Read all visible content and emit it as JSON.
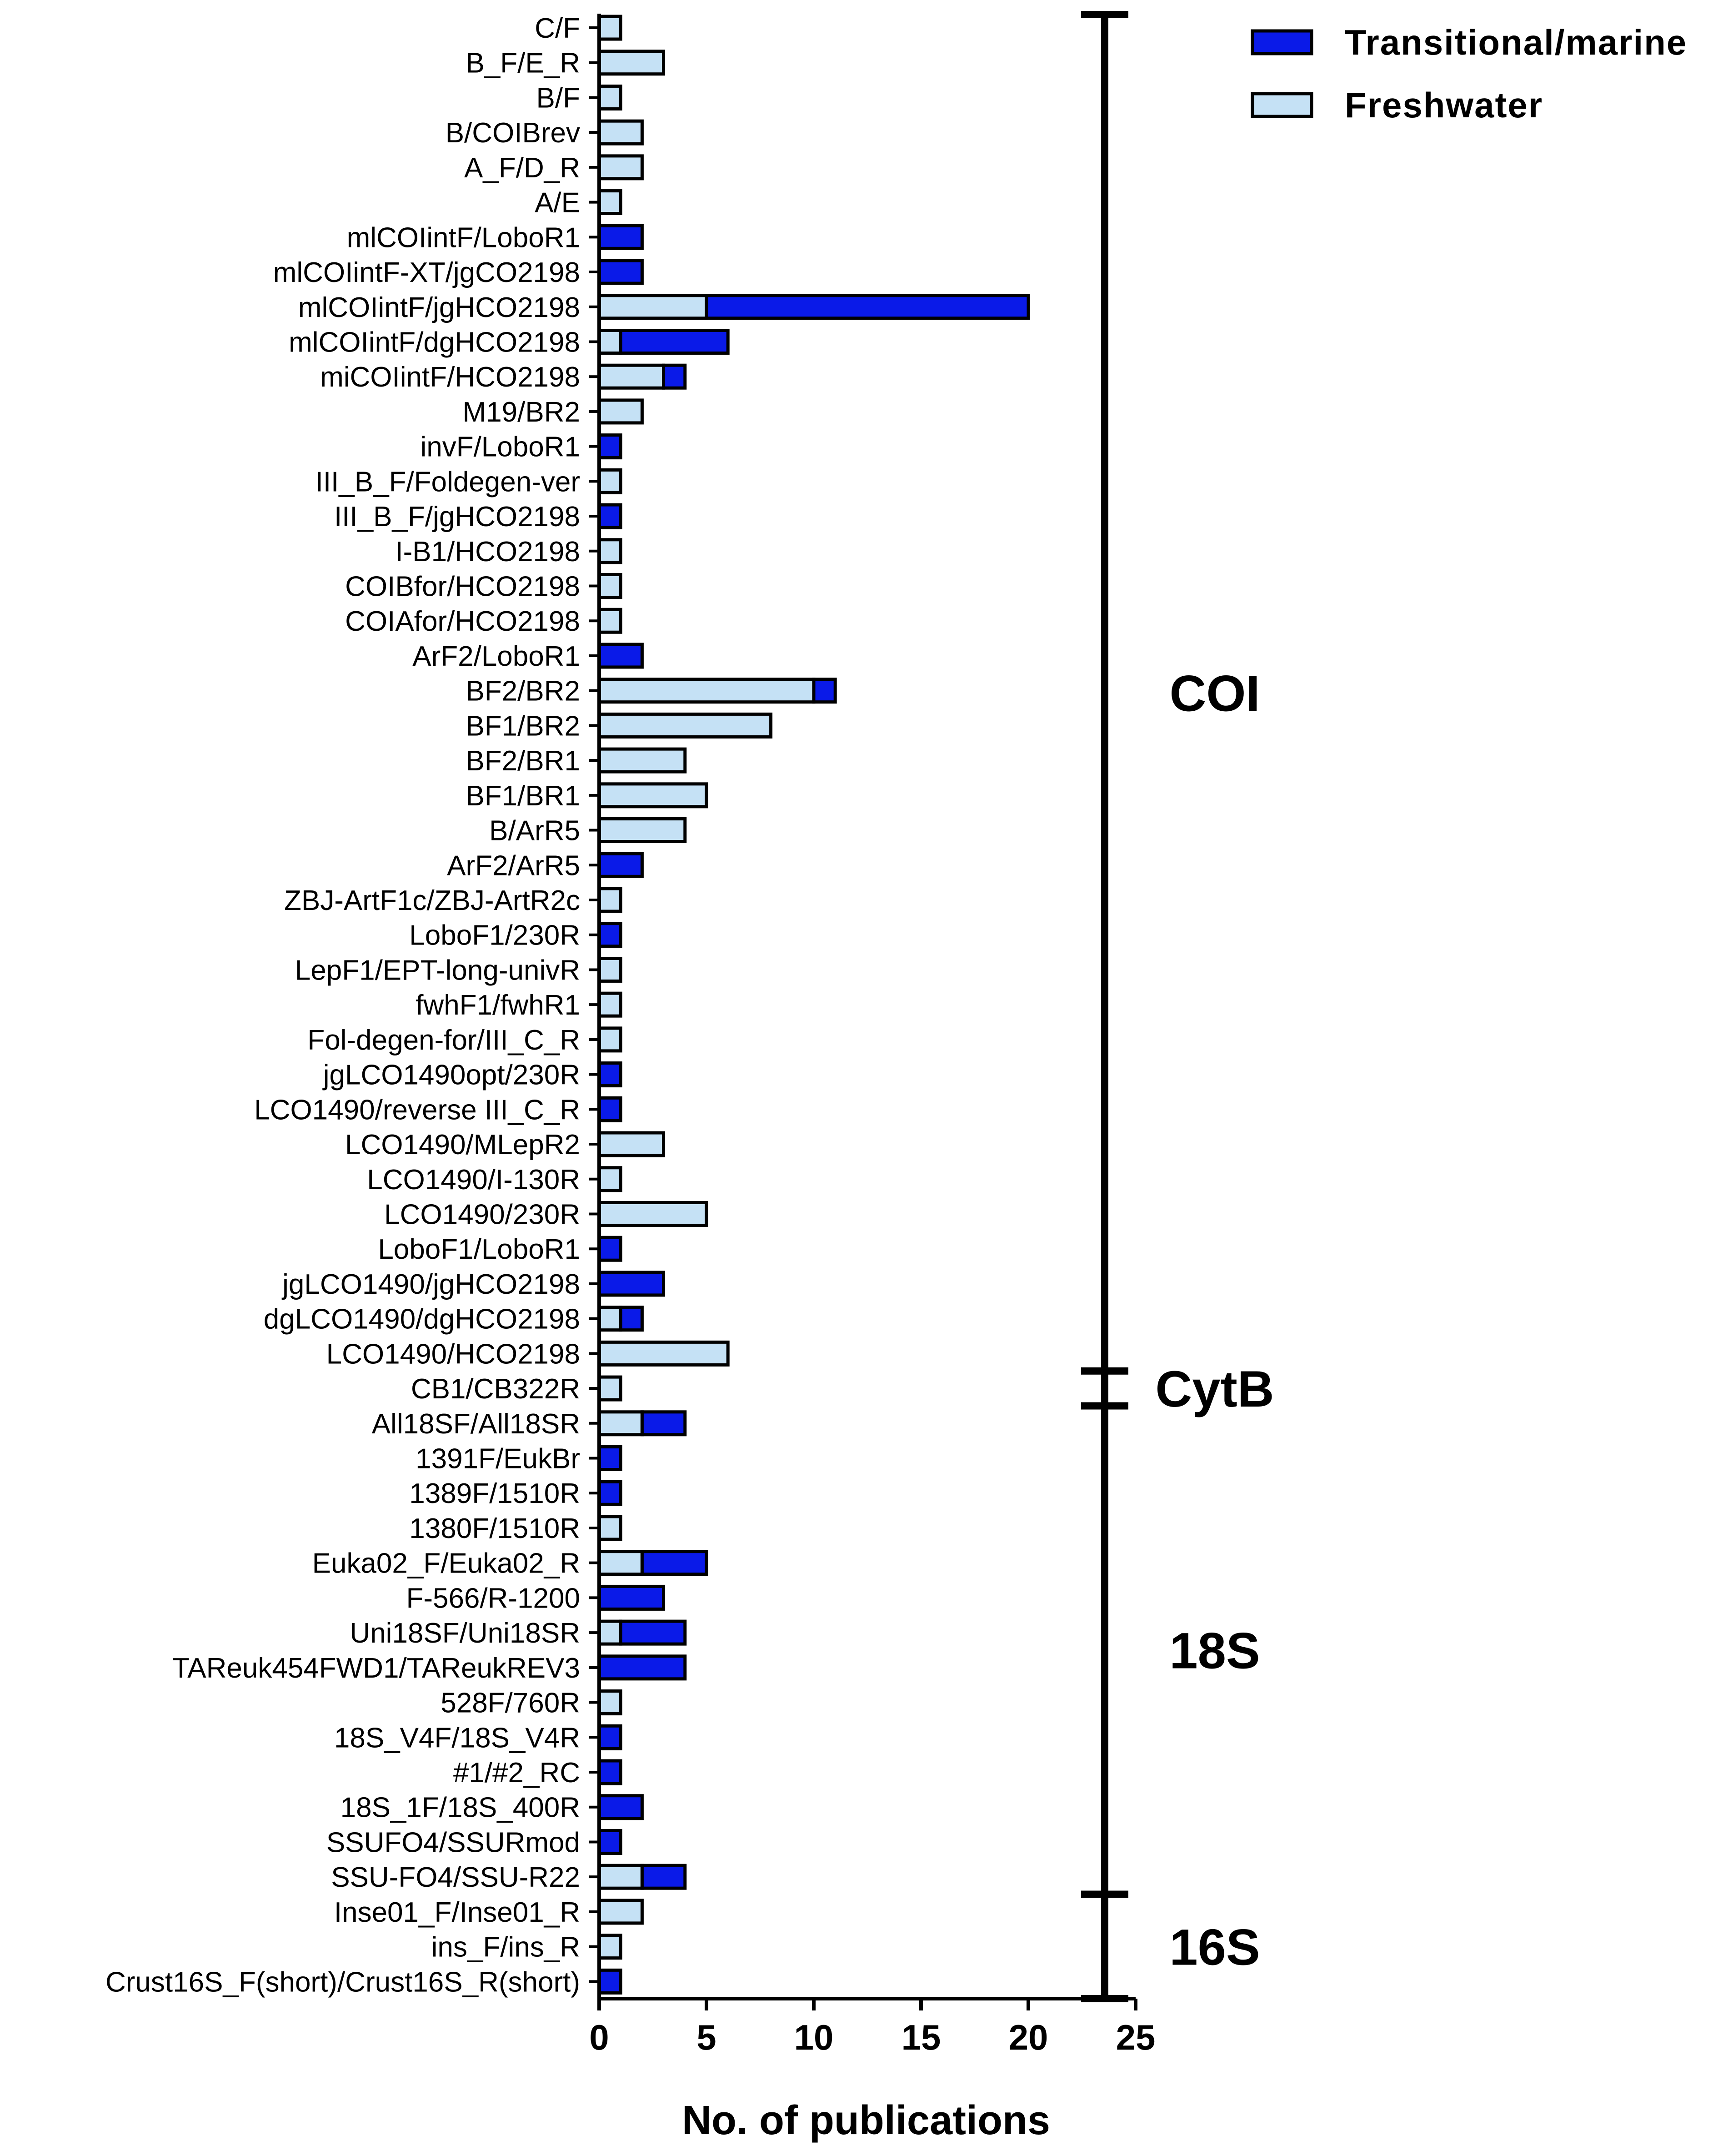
{
  "chart_data": {
    "type": "bar",
    "orientation": "horizontal",
    "stacked": true,
    "title": "",
    "xlabel": "No. of publications",
    "ylabel": "",
    "xlim": [
      0,
      25
    ],
    "xticks": [
      0,
      5,
      10,
      15,
      20,
      25
    ],
    "legend_position": "top-right",
    "colors": {
      "Freshwater": "#c5e1f5",
      "Transitional/marine": "#0a1ae8",
      "outline": "#000000"
    },
    "categories": [
      "C/F",
      "B_F/E_R",
      "B/F",
      "B/COIBrev",
      "A_F/D_R",
      "A/E",
      "mlCOIintF/LoboR1",
      "mlCOIintF-XT/jgCO2198",
      "mlCOIintF/jgHCO2198",
      "mlCOIintF/dgHCO2198",
      "miCOIintF/HCO2198",
      "M19/BR2",
      "invF/LoboR1",
      "III_B_F/Foldegen-ver",
      "III_B_F/jgHCO2198",
      "I-B1/HCO2198",
      "COIBfor/HCO2198",
      "COIAfor/HCO2198",
      "ArF2/LoboR1",
      "BF2/BR2",
      "BF1/BR2",
      "BF2/BR1",
      "BF1/BR1",
      "B/ArR5",
      "ArF2/ArR5",
      "ZBJ-ArtF1c/ZBJ-ArtR2c",
      "LoboF1/230R",
      "LepF1/EPT-long-univR",
      "fwhF1/fwhR1",
      "Fol-degen-for/III_C_R",
      "jgLCO1490opt/230R",
      "LCO1490/reverse III_C_R",
      "LCO1490/MLepR2",
      "LCO1490/I-130R",
      "LCO1490/230R",
      "LoboF1/LoboR1",
      "jgLCO1490/jgHCO2198",
      "dgLCO1490/dgHCO2198",
      "LCO1490/HCO2198",
      "CB1/CB322R",
      "All18SF/All18SR",
      "1391F/EukBr",
      "1389F/1510R",
      "1380F/1510R",
      "Euka02_F/Euka02_R",
      "F-566/R-1200",
      "Uni18SF/Uni18SR",
      "TAReuk454FWD1/TAReukREV3",
      "528F/760R",
      "18S_V4F/18S_V4R",
      "#1/#2_RC",
      "18S_1F/18S_400R",
      "SSUFO4/SSURmod",
      "SSU-FO4/SSU-R22",
      "Inse01_F/Inse01_R",
      "ins_F/ins_R",
      "Crust16S_F(short)/Crust16S_R(short)"
    ],
    "series": [
      {
        "name": "Freshwater",
        "values": [
          1,
          3,
          1,
          2,
          2,
          1,
          0,
          0,
          5,
          1,
          3,
          2,
          0,
          1,
          0,
          1,
          1,
          1,
          0,
          10,
          8,
          4,
          5,
          4,
          0,
          1,
          0,
          1,
          1,
          1,
          0,
          0,
          3,
          1,
          5,
          0,
          0,
          1,
          6,
          1,
          2,
          0,
          0,
          1,
          2,
          0,
          1,
          0,
          1,
          0,
          0,
          0,
          0,
          2,
          2,
          1,
          0
        ]
      },
      {
        "name": "Transitional/marine",
        "values": [
          0,
          0,
          0,
          0,
          0,
          0,
          2,
          2,
          15,
          5,
          1,
          0,
          1,
          0,
          1,
          0,
          0,
          0,
          2,
          1,
          0,
          0,
          0,
          0,
          2,
          0,
          1,
          0,
          0,
          0,
          1,
          1,
          0,
          0,
          0,
          1,
          3,
          1,
          0,
          0,
          2,
          1,
          1,
          0,
          3,
          3,
          3,
          4,
          0,
          1,
          1,
          2,
          1,
          2,
          0,
          0,
          1
        ]
      }
    ],
    "legend": [
      "Transitional/marine",
      "Freshwater"
    ],
    "groups": [
      {
        "label": "COI",
        "from": "C/F",
        "to": "LCO1490/HCO2198"
      },
      {
        "label": "CytB",
        "from": "CB1/CB322R",
        "to": "CB1/CB322R"
      },
      {
        "label": "18S",
        "from": "All18SF/All18SR",
        "to": "SSU-FO4/SSU-R22"
      },
      {
        "label": "16S",
        "from": "Inse01_F/Inse01_R",
        "to": "Crust16S_F(short)/Crust16S_R(short)"
      }
    ]
  }
}
